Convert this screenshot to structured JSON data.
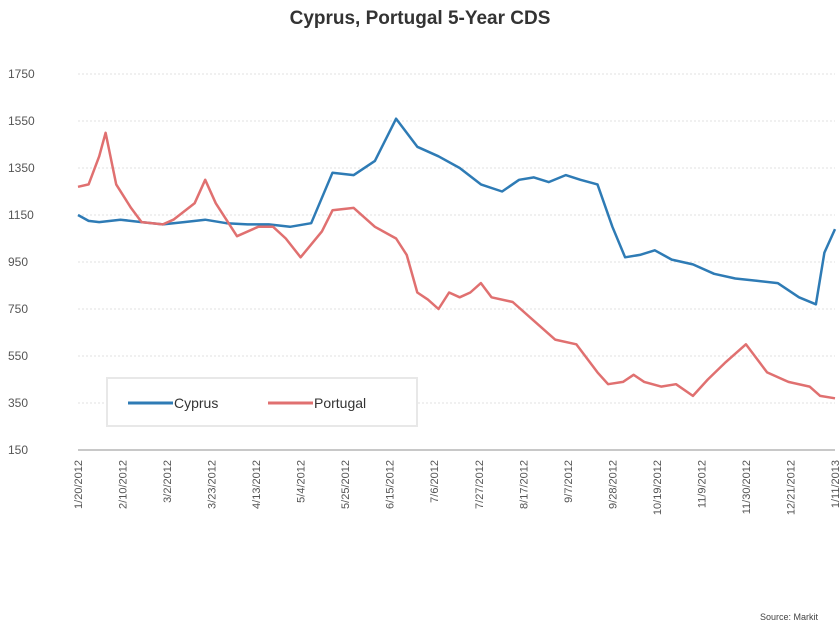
{
  "chart_data": {
    "type": "line",
    "title": "Cyprus, Portugal 5-Year CDS",
    "xlabel": "",
    "ylabel": "",
    "ylim": [
      150,
      1750
    ],
    "yticks": [
      1750,
      1550,
      1350,
      1150,
      950,
      750,
      550,
      350,
      150
    ],
    "grid": true,
    "legend_placement": "bottom-left",
    "source": "Source: Markit",
    "x_tick_labels": [
      "1/20/2012",
      "2/10/2012",
      "3/2/2012",
      "3/23/2012",
      "4/13/2012",
      "5/4/2012",
      "5/25/2012",
      "6/15/2012",
      "7/6/2012",
      "7/27/2012",
      "8/17/2012",
      "9/7/2012",
      "9/28/2012",
      "10/19/2012",
      "11/9/2012",
      "11/30/2012",
      "12/21/2012",
      "1/11/2013"
    ],
    "x_range_days": [
      0,
      357
    ],
    "series": [
      {
        "name": "Cyprus",
        "color": "#2e7bb5",
        "x_days": [
          0,
          5,
          10,
          20,
          30,
          40,
          50,
          60,
          70,
          80,
          90,
          100,
          110,
          120,
          130,
          140,
          150,
          160,
          170,
          180,
          190,
          200,
          208,
          215,
          222,
          230,
          237,
          245,
          252,
          258,
          265,
          272,
          280,
          290,
          300,
          310,
          320,
          330,
          340,
          348,
          352,
          357
        ],
        "values": [
          1150,
          1125,
          1120,
          1130,
          1120,
          1110,
          1120,
          1130,
          1115,
          1110,
          1110,
          1100,
          1115,
          1330,
          1320,
          1380,
          1560,
          1440,
          1400,
          1350,
          1280,
          1250,
          1300,
          1310,
          1290,
          1320,
          1300,
          1280,
          1100,
          970,
          980,
          1000,
          960,
          940,
          900,
          880,
          870,
          860,
          800,
          770,
          990,
          1090
        ]
      },
      {
        "name": "Portugal",
        "color": "#e07070",
        "x_days": [
          0,
          5,
          10,
          13,
          18,
          25,
          30,
          40,
          45,
          55,
          60,
          65,
          75,
          85,
          92,
          98,
          105,
          115,
          120,
          130,
          140,
          150,
          155,
          160,
          165,
          170,
          175,
          180,
          185,
          190,
          195,
          205,
          215,
          225,
          235,
          245,
          250,
          257,
          262,
          267,
          275,
          282,
          290,
          297,
          305,
          315,
          325,
          335,
          345,
          350,
          357
        ],
        "values": [
          1270,
          1280,
          1400,
          1500,
          1280,
          1180,
          1120,
          1110,
          1130,
          1200,
          1300,
          1200,
          1060,
          1100,
          1100,
          1050,
          970,
          1080,
          1170,
          1180,
          1100,
          1050,
          980,
          820,
          790,
          750,
          820,
          800,
          820,
          860,
          800,
          780,
          700,
          620,
          600,
          480,
          430,
          440,
          470,
          440,
          420,
          430,
          380,
          450,
          520,
          600,
          480,
          440,
          420,
          380,
          370
        ]
      }
    ]
  },
  "legend": {
    "items": [
      {
        "label": "Cyprus",
        "color": "#2e7bb5"
      },
      {
        "label": "Portugal",
        "color": "#e07070"
      }
    ]
  }
}
